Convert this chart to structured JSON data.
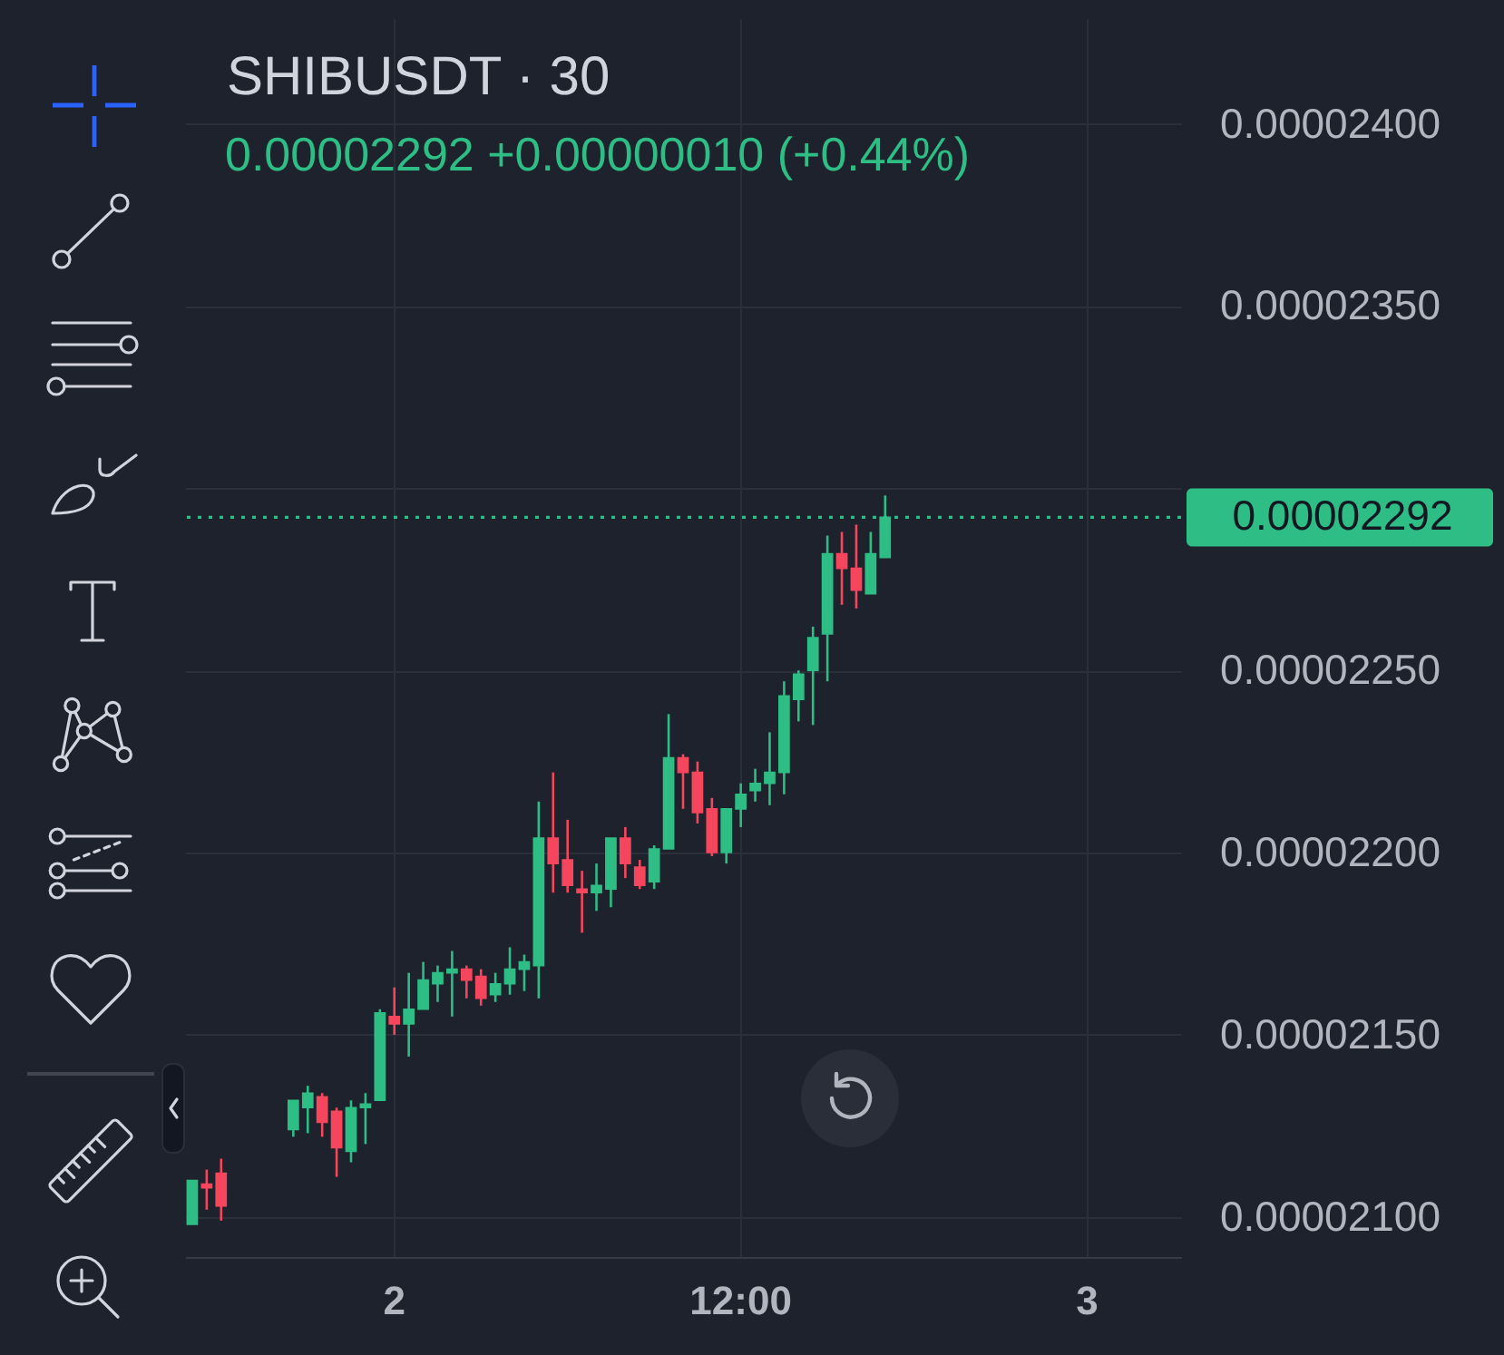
{
  "chart_data": {
    "type": "candlestick",
    "title": "SHIBUSDT · 30",
    "subtitle": "0.00002292 +0.00000010 (+0.44%)",
    "categories": [
      null,
      null,
      null,
      null,
      null,
      null,
      null,
      null,
      null,
      null,
      null,
      null,
      null,
      null,
      "2",
      null,
      null,
      null,
      null,
      null,
      null,
      null,
      null,
      null,
      null,
      null,
      null,
      null,
      null,
      null,
      null,
      null,
      null,
      null,
      null,
      null,
      null,
      null,
      "12:00",
      null,
      null,
      null,
      null,
      null,
      null,
      null,
      null,
      null,
      null,
      null,
      null,
      null,
      null,
      null,
      null,
      null,
      null,
      null,
      null,
      null,
      null,
      null,
      "3",
      null,
      null,
      null,
      null,
      null,
      null
    ],
    "ohlc": [
      [
        2.098e-05,
        2.11e-05,
        2.098e-05,
        2.11e-05
      ],
      [
        2.109e-05,
        2.113e-05,
        2.102e-05,
        2.108e-05
      ],
      [
        2.112e-05,
        2.116e-05,
        2.099e-05,
        2.103e-05
      ],
      null,
      null,
      null,
      null,
      [
        2.124e-05,
        2.132e-05,
        2.122e-05,
        2.132e-05
      ],
      [
        2.13e-05,
        2.136e-05,
        2.123e-05,
        2.134e-05
      ],
      [
        2.133e-05,
        2.134e-05,
        2.122e-05,
        2.126e-05
      ],
      [
        2.129e-05,
        2.13e-05,
        2.111e-05,
        2.119e-05
      ],
      [
        2.118e-05,
        2.132e-05,
        2.115e-05,
        2.13e-05
      ],
      [
        2.13e-05,
        2.134e-05,
        2.12e-05,
        2.131e-05
      ],
      [
        2.132e-05,
        2.157e-05,
        2.132e-05,
        2.156e-05
      ],
      [
        2.155e-05,
        2.163e-05,
        2.15e-05,
        2.153e-05
      ],
      [
        2.153e-05,
        2.167e-05,
        2.144e-05,
        2.157e-05
      ],
      [
        2.157e-05,
        2.17e-05,
        2.157e-05,
        2.165e-05
      ],
      [
        2.164e-05,
        2.169e-05,
        2.159e-05,
        2.167e-05
      ],
      [
        2.167e-05,
        2.173e-05,
        2.155e-05,
        2.168e-05
      ],
      [
        2.168e-05,
        2.169e-05,
        2.16e-05,
        2.165e-05
      ],
      [
        2.166e-05,
        2.168e-05,
        2.158e-05,
        2.16e-05
      ],
      [
        2.161e-05,
        2.167e-05,
        2.159e-05,
        2.164e-05
      ],
      [
        2.164e-05,
        2.174e-05,
        2.161e-05,
        2.168e-05
      ],
      [
        2.168e-05,
        2.172e-05,
        2.162e-05,
        2.17e-05
      ],
      [
        2.169e-05,
        2.214e-05,
        2.16e-05,
        2.204e-05
      ],
      [
        2.204e-05,
        2.222e-05,
        2.189e-05,
        2.197e-05
      ],
      [
        2.198e-05,
        2.209e-05,
        2.189e-05,
        2.191e-05
      ],
      [
        2.19e-05,
        2.195e-05,
        2.178e-05,
        2.189e-05
      ],
      [
        2.189e-05,
        2.197e-05,
        2.184e-05,
        2.191e-05
      ],
      [
        2.19e-05,
        2.204e-05,
        2.185e-05,
        2.204e-05
      ],
      [
        2.204e-05,
        2.207e-05,
        2.193e-05,
        2.197e-05
      ],
      [
        2.196e-05,
        2.198e-05,
        2.19e-05,
        2.191e-05
      ],
      [
        2.192e-05,
        2.202e-05,
        2.19e-05,
        2.201e-05
      ],
      [
        2.201e-05,
        2.238e-05,
        2.201e-05,
        2.226e-05
      ],
      [
        2.226e-05,
        2.227e-05,
        2.212e-05,
        2.222e-05
      ],
      [
        2.222e-05,
        2.225e-05,
        2.208e-05,
        2.211e-05
      ],
      [
        2.212e-05,
        2.215e-05,
        2.199e-05,
        2.2e-05
      ],
      [
        2.2e-05,
        2.212e-05,
        2.197e-05,
        2.212e-05
      ],
      [
        2.212e-05,
        2.219e-05,
        2.207e-05,
        2.216e-05
      ],
      [
        2.217e-05,
        2.223e-05,
        2.214e-05,
        2.219e-05
      ],
      [
        2.219e-05,
        2.233e-05,
        2.213e-05,
        2.222e-05
      ],
      [
        2.222e-05,
        2.247e-05,
        2.216e-05,
        2.243e-05
      ],
      [
        2.242e-05,
        2.25e-05,
        2.236e-05,
        2.249e-05
      ],
      [
        2.25e-05,
        2.262e-05,
        2.235e-05,
        2.259e-05
      ],
      [
        2.26e-05,
        2.287e-05,
        2.247e-05,
        2.282e-05
      ],
      [
        2.282e-05,
        2.288e-05,
        2.268e-05,
        2.278e-05
      ],
      [
        2.278e-05,
        2.29e-05,
        2.267e-05,
        2.272e-05
      ],
      [
        2.271e-05,
        2.288e-05,
        2.271e-05,
        2.282e-05
      ],
      [
        2.281e-05,
        2.298e-05,
        2.281e-05,
        2.292e-05
      ],
      null,
      null,
      null,
      null,
      null,
      null,
      null,
      null,
      null,
      null,
      null,
      null,
      null,
      null,
      null,
      null,
      null,
      null,
      null,
      null
    ],
    "colors": [
      "#2ebd85",
      "#f6465d",
      "#f6465d",
      null,
      null,
      null,
      null,
      "#2ebd85",
      "#2ebd85",
      "#f6465d",
      "#f6465d",
      "#2ebd85",
      "#2ebd85",
      "#2ebd85",
      "#f6465d",
      "#2ebd85",
      "#2ebd85",
      "#2ebd85",
      "#2ebd85",
      "#f6465d",
      "#f6465d",
      "#2ebd85",
      "#2ebd85",
      "#2ebd85",
      "#2ebd85",
      "#f6465d",
      "#f6465d",
      "#f6465d",
      "#2ebd85",
      "#2ebd85",
      "#f6465d",
      "#f6465d",
      "#2ebd85",
      "#2ebd85",
      "#f6465d",
      "#f6465d",
      "#f6465d",
      "#2ebd85",
      "#2ebd85",
      "#2ebd85",
      "#2ebd85",
      "#2ebd85",
      "#2ebd85",
      "#2ebd85",
      "#2ebd85",
      "#f6465d",
      "#f6465d",
      "#2ebd85",
      "#2ebd85",
      null,
      null,
      null,
      null,
      null,
      null,
      null,
      null,
      null,
      null,
      null,
      null,
      null,
      null,
      null,
      null,
      null,
      null,
      null,
      null
    ],
    "ylim": [
      2.089e-05,
      2.429e-05
    ],
    "yticks": [
      {
        "value": 2.1e-05,
        "label": "0.00002100"
      },
      {
        "value": 2.15e-05,
        "label": "0.00002150"
      },
      {
        "value": 2.2e-05,
        "label": "0.00002200"
      },
      {
        "value": 2.25e-05,
        "label": "0.00002250"
      },
      {
        "value": 2.3e-05,
        "label": null
      },
      {
        "value": 2.35e-05,
        "label": "0.00002350"
      },
      {
        "value": 2.4e-05,
        "label": "0.00002400"
      }
    ],
    "grid": true,
    "ref_lines": [
      {
        "axis": "y",
        "value": 2.292e-05,
        "label": "0.00002292",
        "color": "#2ebd85",
        "line_style": "dotted"
      }
    ]
  }
}
